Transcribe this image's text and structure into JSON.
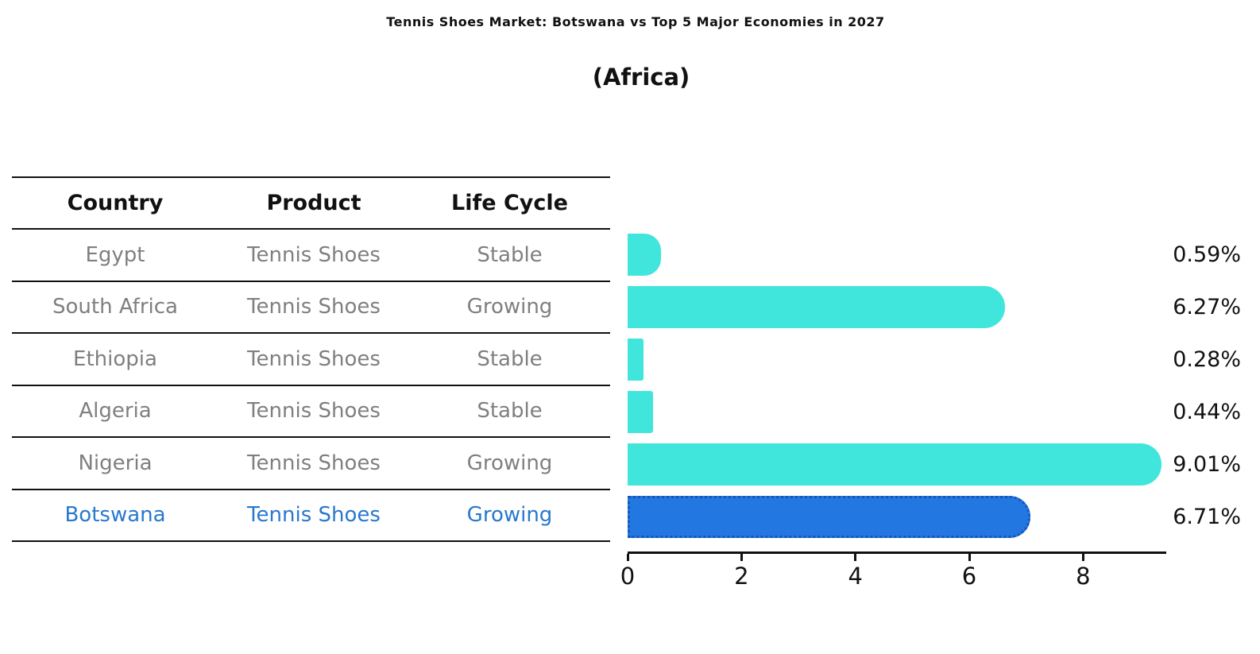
{
  "header": {
    "title": "Tennis Shoes Market: Botswana vs Top 5 Major Economies in 2027",
    "subtitle": "(Africa)"
  },
  "table": {
    "headers": [
      "Country",
      "Product",
      "Life Cycle"
    ]
  },
  "chart_data": {
    "type": "bar",
    "orientation": "horizontal",
    "title": "Tennis Shoes Market: Botswana vs Top 5 Major Economies in 2027",
    "subtitle": "(Africa)",
    "categories": [
      "Egypt",
      "South Africa",
      "Ethiopia",
      "Algeria",
      "Nigeria",
      "Botswana"
    ],
    "values": [
      0.59,
      6.27,
      0.28,
      0.44,
      9.01,
      6.71
    ],
    "value_labels": [
      "0.59%",
      "6.27%",
      "0.28%",
      "0.44%",
      "9.01%",
      "6.71%"
    ],
    "rows": [
      {
        "country": "Egypt",
        "product": "Tennis Shoes",
        "life_cycle": "Stable",
        "value": 0.59,
        "label": "0.59%",
        "highlight": false
      },
      {
        "country": "South Africa",
        "product": "Tennis Shoes",
        "life_cycle": "Growing",
        "value": 6.27,
        "label": "6.27%",
        "highlight": false
      },
      {
        "country": "Ethiopia",
        "product": "Tennis Shoes",
        "life_cycle": "Stable",
        "value": 0.28,
        "label": "0.28%",
        "highlight": false
      },
      {
        "country": "Algeria",
        "product": "Tennis Shoes",
        "life_cycle": "Stable",
        "value": 0.44,
        "label": "0.44%",
        "highlight": false
      },
      {
        "country": "Nigeria",
        "product": "Tennis Shoes",
        "life_cycle": "Growing",
        "value": 9.01,
        "label": "9.01%",
        "highlight": false
      },
      {
        "country": "Botswana",
        "product": "Tennis Shoes",
        "life_cycle": "Growing",
        "value": 6.71,
        "label": "6.71%",
        "highlight": true
      }
    ],
    "xticks": [
      0,
      2,
      4,
      6,
      8
    ],
    "xlim": [
      0,
      9.46
    ],
    "grid": false,
    "legend": null,
    "colors": {
      "bar": "#40E5DC",
      "highlight_bar": "#2277E0",
      "highlight_border": "#1856B8",
      "highlight_text": "#2878CE",
      "cell_text": "#7F7F7F",
      "header_text": "#000000",
      "label_text": "#000000"
    }
  }
}
